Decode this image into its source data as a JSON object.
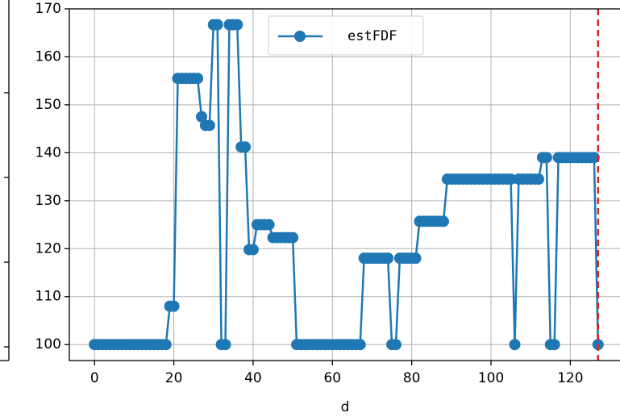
{
  "chart_data": {
    "type": "line",
    "x": [
      0,
      1,
      2,
      3,
      4,
      5,
      6,
      7,
      8,
      9,
      10,
      11,
      12,
      13,
      14,
      15,
      16,
      17,
      18,
      19,
      20,
      21,
      22,
      23,
      24,
      25,
      26,
      27,
      28,
      29,
      30,
      31,
      32,
      33,
      34,
      35,
      36,
      37,
      38,
      39,
      40,
      41,
      42,
      43,
      44,
      45,
      46,
      47,
      48,
      49,
      50,
      51,
      52,
      53,
      54,
      55,
      56,
      57,
      58,
      59,
      60,
      61,
      62,
      63,
      64,
      65,
      66,
      67,
      68,
      69,
      70,
      71,
      72,
      73,
      74,
      75,
      76,
      77,
      78,
      79,
      80,
      81,
      82,
      83,
      84,
      85,
      86,
      87,
      88,
      89,
      90,
      91,
      92,
      93,
      94,
      95,
      96,
      97,
      98,
      99,
      100,
      101,
      102,
      103,
      104,
      105,
      106,
      107,
      108,
      109,
      110,
      111,
      112,
      113,
      114,
      115,
      116,
      117,
      118,
      119,
      120,
      121,
      122,
      123,
      124,
      125,
      126,
      127
    ],
    "series": [
      {
        "name": "estFDF",
        "color": "#1f77b4",
        "values": [
          100,
          100,
          100,
          100,
          100,
          100,
          100,
          100,
          100,
          100,
          100,
          100,
          100,
          100,
          100,
          100,
          100,
          100,
          100,
          108,
          108,
          155.5,
          155.5,
          155.5,
          155.5,
          155.5,
          155.5,
          147.5,
          145.7,
          145.7,
          166.7,
          166.7,
          100,
          100,
          166.7,
          166.7,
          166.7,
          141.2,
          141.2,
          119.8,
          119.8,
          125,
          125,
          125,
          125,
          122.3,
          122.3,
          122.3,
          122.3,
          122.3,
          122.3,
          100,
          100,
          100,
          100,
          100,
          100,
          100,
          100,
          100,
          100,
          100,
          100,
          100,
          100,
          100,
          100,
          100,
          118,
          118,
          118,
          118,
          118,
          118,
          118,
          100,
          100,
          118,
          118,
          118,
          118,
          118,
          125.7,
          125.7,
          125.7,
          125.7,
          125.7,
          125.7,
          125.7,
          134.5,
          134.5,
          134.5,
          134.5,
          134.5,
          134.5,
          134.5,
          134.5,
          134.5,
          134.5,
          134.5,
          134.5,
          134.5,
          134.5,
          134.5,
          134.5,
          134.5,
          100,
          134.5,
          134.5,
          134.5,
          134.5,
          134.5,
          134.5,
          139,
          139,
          100,
          100,
          139,
          139,
          139,
          139,
          139,
          139,
          139,
          139,
          139,
          139,
          100
        ]
      }
    ],
    "xlabel": "d",
    "xlim": [
      -6.35,
      133.35
    ],
    "xticks": [
      0,
      20,
      40,
      60,
      80,
      100,
      120
    ],
    "ylim": [
      96.67,
      170
    ],
    "yticks": [
      100,
      110,
      120,
      130,
      140,
      150,
      160,
      170
    ],
    "grid": true,
    "legend": "upper center",
    "vline_x": 127,
    "vline_color": "#d62728"
  }
}
